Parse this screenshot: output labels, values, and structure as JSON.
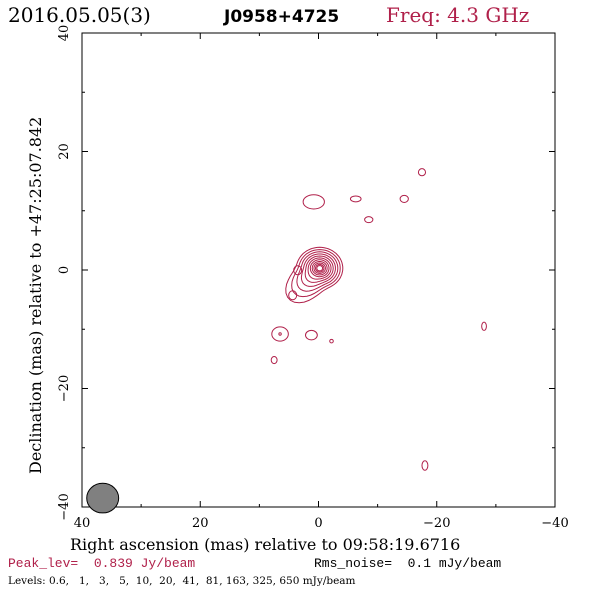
{
  "header": {
    "date": "2016.05.05(3)",
    "source": "J0958+4725",
    "freq": "Freq: 4.3 GHz"
  },
  "footer": {
    "peak": "Peak_lev=  0.839 Jy/beam",
    "rms": "Rms_noise=  0.1 mJy/beam",
    "levels": "Levels: 0.6,   1,   3,   5,  10,  20,  41,  81, 163, 325, 650 mJy/beam"
  },
  "colors": {
    "contour": "#b0204a",
    "beam": "#808080",
    "axes": "#000000"
  },
  "chart_data": {
    "type": "contour",
    "title": "J0958+4725",
    "xlabel": "Right ascension (mas) relative to 09:58:19.6716",
    "ylabel": "Declination (mas) relative to +47:25:07.842",
    "xlim": [
      40,
      -40
    ],
    "ylim": [
      -40,
      40
    ],
    "x_ticks": [
      40,
      20,
      0,
      -20,
      -40
    ],
    "y_ticks": [
      -40,
      -20,
      0,
      20,
      40
    ],
    "x_tick_labels": [
      "40",
      "20",
      "0",
      "−20",
      "−40"
    ],
    "y_tick_labels": [
      "−40",
      "−20",
      "0",
      "20",
      "40"
    ],
    "contour_levels_mjy": [
      0.6,
      1,
      3,
      5,
      10,
      20,
      41,
      81,
      163,
      325,
      650
    ],
    "peak_jy_per_beam": 0.839,
    "rms_mjy_per_beam": 0.1,
    "core": {
      "x": -0.2,
      "y": 0.3
    },
    "beam": {
      "x": 36.5,
      "y": -38.5,
      "major": 2.7,
      "minor": 2.5
    },
    "components": [
      {
        "x": 0.8,
        "y": 11.5,
        "rx": 1.8,
        "ry": 1.2
      },
      {
        "x": -6.3,
        "y": 12.0,
        "rx": 0.9,
        "ry": 0.5
      },
      {
        "x": -8.5,
        "y": 8.5,
        "rx": 0.7,
        "ry": 0.5
      },
      {
        "x": -14.5,
        "y": 12.0,
        "rx": 0.7,
        "ry": 0.6
      },
      {
        "x": -17.5,
        "y": 16.5,
        "rx": 0.6,
        "ry": 0.6
      },
      {
        "x": 6.5,
        "y": -10.8,
        "rx": 1.4,
        "ry": 1.2
      },
      {
        "x": 1.2,
        "y": -11.0,
        "rx": 1.0,
        "ry": 0.8
      },
      {
        "x": -2.2,
        "y": -12.0,
        "rx": 0.3,
        "ry": 0.3
      },
      {
        "x": 7.5,
        "y": -15.2,
        "rx": 0.5,
        "ry": 0.6
      },
      {
        "x": -28.0,
        "y": -9.5,
        "rx": 0.4,
        "ry": 0.7
      },
      {
        "x": -18.0,
        "y": -33.0,
        "rx": 0.5,
        "ry": 0.8
      }
    ]
  }
}
